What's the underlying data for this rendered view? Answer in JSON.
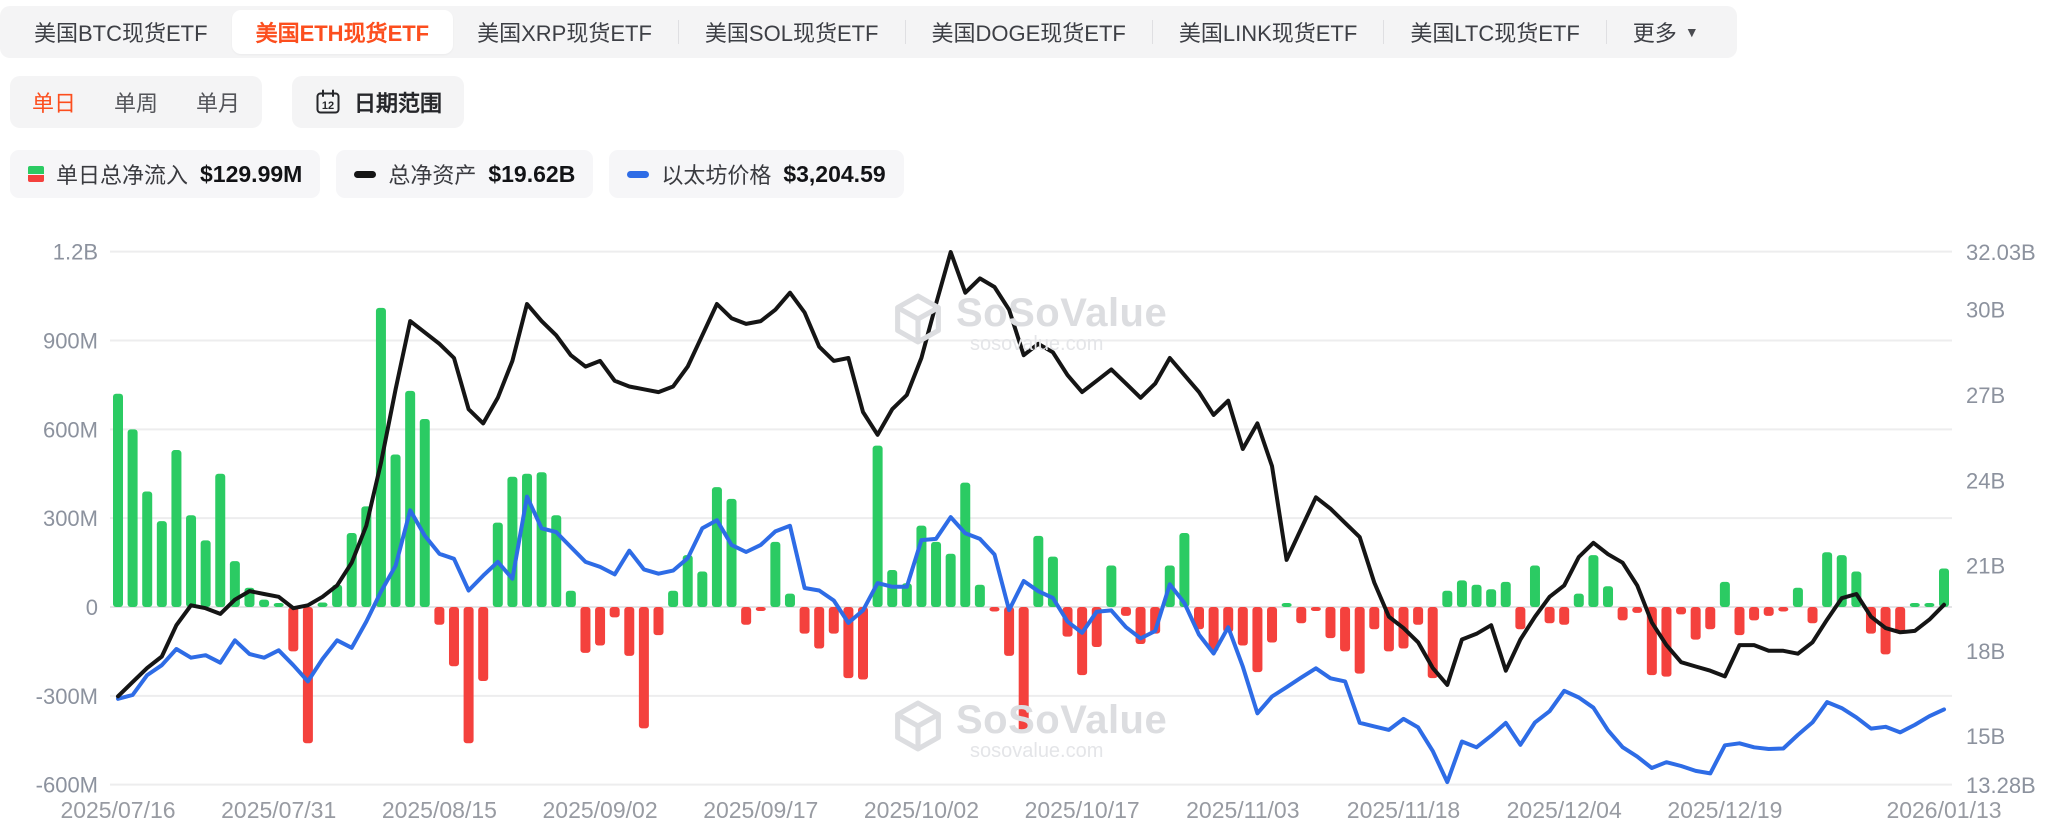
{
  "tabs": {
    "items": [
      {
        "label": "美国BTC现货ETF",
        "active": false
      },
      {
        "label": "美国ETH现货ETF",
        "active": true
      },
      {
        "label": "美国XRP现货ETF",
        "active": false
      },
      {
        "label": "美国SOL现货ETF",
        "active": false
      },
      {
        "label": "美国DOGE现货ETF",
        "active": false
      },
      {
        "label": "美国LINK现货ETF",
        "active": false
      },
      {
        "label": "美国LTC现货ETF",
        "active": false
      }
    ],
    "more_label": "更多"
  },
  "period_toggle": {
    "options": [
      "单日",
      "单周",
      "单月"
    ],
    "selected": "单日"
  },
  "date_range": {
    "label": "日期范围",
    "calendar_day": "12"
  },
  "legend": [
    {
      "marker": "green-red-square",
      "label": "单日总净流入",
      "value": "$129.99M"
    },
    {
      "marker": "black-dash",
      "label": "总净资产",
      "value": "$19.62B"
    },
    {
      "marker": "blue-dash",
      "label": "以太坊价格",
      "value": "$3,204.59"
    }
  ],
  "watermark": {
    "brand": "SoSoValue",
    "domain": "sosovalue.com"
  },
  "colors": {
    "accent": "#fc4e1e",
    "bar_positive": "#2bcb63",
    "bar_negative": "#f4413d",
    "assets_line": "#151515",
    "price_line": "#2e6ce6",
    "grid": "#ededee",
    "axis_text": "#8c929e",
    "date_text": "#989ba2"
  },
  "chart_data": {
    "type": "bar",
    "title": "美国ETH现货ETF 单日总净流入 / 总净资产 / 以太坊价格",
    "left_axis": {
      "unit": "M USD",
      "min": -600,
      "max": 1200,
      "tick_values": [
        1200,
        900,
        600,
        300,
        0,
        -300,
        -600
      ],
      "tick_labels": [
        "1.2B",
        "900M",
        "600M",
        "300M",
        "0",
        "-300M",
        "-600M"
      ]
    },
    "right_axis": {
      "unit": "B USD",
      "min": 13.28,
      "max": 32.03,
      "tick_values": [
        32.03,
        30,
        27,
        24,
        21,
        18,
        15,
        13.28
      ],
      "tick_labels": [
        "32.03B",
        "30B",
        "27B",
        "24B",
        "21B",
        "18B",
        "15B",
        "13.28B"
      ]
    },
    "price_axis_hidden": {
      "unit": "USD",
      "min": 2597,
      "max": 6881
    },
    "x_tick_indices": [
      0,
      11,
      22,
      33,
      44,
      55,
      66,
      77,
      88,
      99,
      110,
      125
    ],
    "x_tick_labels": [
      "2025/07/16",
      "2025/07/31",
      "2025/08/15",
      "2025/09/02",
      "2025/09/17",
      "2025/10/02",
      "2025/10/17",
      "2025/11/03",
      "2025/11/18",
      "2025/12/04",
      "2025/12/19",
      "2026/01/13"
    ],
    "grid": true,
    "legend_position": "top-left",
    "dates": [
      "2025/07/16",
      "2025/07/17",
      "2025/07/18",
      "2025/07/21",
      "2025/07/22",
      "2025/07/23",
      "2025/07/24",
      "2025/07/25",
      "2025/07/28",
      "2025/07/29",
      "2025/07/30",
      "2025/07/31",
      "2025/08/01",
      "2025/08/04",
      "2025/08/05",
      "2025/08/06",
      "2025/08/07",
      "2025/08/08",
      "2025/08/11",
      "2025/08/12",
      "2025/08/13",
      "2025/08/14",
      "2025/08/15",
      "2025/08/18",
      "2025/08/19",
      "2025/08/20",
      "2025/08/21",
      "2025/08/22",
      "2025/08/25",
      "2025/08/26",
      "2025/08/27",
      "2025/08/28",
      "2025/08/29",
      "2025/09/02",
      "2025/09/03",
      "2025/09/04",
      "2025/09/05",
      "2025/09/08",
      "2025/09/09",
      "2025/09/10",
      "2025/09/11",
      "2025/09/12",
      "2025/09/15",
      "2025/09/16",
      "2025/09/17",
      "2025/09/18",
      "2025/09/19",
      "2025/09/22",
      "2025/09/23",
      "2025/09/24",
      "2025/09/25",
      "2025/09/26",
      "2025/09/29",
      "2025/09/30",
      "2025/10/01",
      "2025/10/02",
      "2025/10/03",
      "2025/10/06",
      "2025/10/07",
      "2025/10/08",
      "2025/10/09",
      "2025/10/10",
      "2025/10/13",
      "2025/10/14",
      "2025/10/15",
      "2025/10/16",
      "2025/10/17",
      "2025/10/20",
      "2025/10/21",
      "2025/10/22",
      "2025/10/23",
      "2025/10/24",
      "2025/10/27",
      "2025/10/28",
      "2025/10/29",
      "2025/10/30",
      "2025/10/31",
      "2025/11/03",
      "2025/11/04",
      "2025/11/05",
      "2025/11/06",
      "2025/11/07",
      "2025/11/10",
      "2025/11/11",
      "2025/11/12",
      "2025/11/13",
      "2025/11/14",
      "2025/11/17",
      "2025/11/18",
      "2025/11/19",
      "2025/11/20",
      "2025/11/21",
      "2025/11/24",
      "2025/11/25",
      "2025/11/26",
      "2025/11/28",
      "2025/12/01",
      "2025/12/02",
      "2025/12/03",
      "2025/12/04",
      "2025/12/05",
      "2025/12/08",
      "2025/12/09",
      "2025/12/10",
      "2025/12/11",
      "2025/12/12",
      "2025/12/15",
      "2025/12/16",
      "2025/12/17",
      "2025/12/18",
      "2025/12/19",
      "2025/12/22",
      "2025/12/23",
      "2025/12/24",
      "2025/12/26",
      "2025/12/29",
      "2025/12/30",
      "2025/12/31",
      "2026/01/02",
      "2026/01/05",
      "2026/01/06",
      "2026/01/07",
      "2026/01/08",
      "2026/01/09",
      "2026/01/12",
      "2026/01/13"
    ],
    "series": [
      {
        "name": "单日总净流入",
        "type": "bar",
        "unit": "M USD",
        "latest": 129.99,
        "values": [
          720,
          600,
          390,
          290,
          530,
          310,
          225,
          450,
          155,
          65,
          25,
          10,
          -150,
          -460,
          15,
          75,
          250,
          340,
          1010,
          515,
          730,
          635,
          -60,
          -200,
          -460,
          -250,
          285,
          440,
          450,
          455,
          310,
          55,
          -155,
          -130,
          -35,
          -165,
          -410,
          -95,
          55,
          175,
          120,
          405,
          365,
          -60,
          -5,
          220,
          45,
          -90,
          -140,
          -90,
          -240,
          -245,
          545,
          125,
          80,
          275,
          220,
          180,
          420,
          75,
          -15,
          -165,
          -420,
          240,
          170,
          -100,
          -230,
          -135,
          140,
          -30,
          -125,
          -90,
          140,
          250,
          -75,
          -150,
          -85,
          -130,
          -220,
          -120,
          10,
          -55,
          -5,
          -105,
          -150,
          -225,
          -75,
          -150,
          -140,
          -60,
          -240,
          55,
          90,
          75,
          60,
          85,
          -75,
          140,
          -55,
          -60,
          45,
          175,
          70,
          -45,
          -20,
          -230,
          -235,
          -25,
          -110,
          -75,
          85,
          -95,
          -45,
          -30,
          -15,
          65,
          -55,
          185,
          175,
          120,
          -90,
          -160,
          -90,
          5,
          10,
          129.99
        ]
      },
      {
        "name": "总净资产",
        "type": "line",
        "unit": "B USD",
        "latest": 19.62,
        "values": [
          16.4,
          16.9,
          17.4,
          17.8,
          18.9,
          19.6,
          19.5,
          19.3,
          19.8,
          20.1,
          20.0,
          19.9,
          19.5,
          19.6,
          19.9,
          20.3,
          21.1,
          22.4,
          24.6,
          27.2,
          29.6,
          29.2,
          28.8,
          28.3,
          26.5,
          26.0,
          26.9,
          28.2,
          30.2,
          29.6,
          29.1,
          28.4,
          28.0,
          28.2,
          27.5,
          27.3,
          27.2,
          27.1,
          27.3,
          28.0,
          29.1,
          30.2,
          29.7,
          29.5,
          29.6,
          30.0,
          30.6,
          29.9,
          28.7,
          28.2,
          28.3,
          26.4,
          25.6,
          26.5,
          27.0,
          28.3,
          30.2,
          32.03,
          30.6,
          31.1,
          30.8,
          30.0,
          28.4,
          28.8,
          28.5,
          27.7,
          27.1,
          27.5,
          27.9,
          27.4,
          26.9,
          27.4,
          28.3,
          27.7,
          27.1,
          26.3,
          26.8,
          25.1,
          26.0,
          24.5,
          21.2,
          22.3,
          23.4,
          23.0,
          22.5,
          22.0,
          20.4,
          19.2,
          18.8,
          18.3,
          17.4,
          16.8,
          18.4,
          18.6,
          18.9,
          17.3,
          18.4,
          19.2,
          19.9,
          20.3,
          21.3,
          21.8,
          21.4,
          21.1,
          20.3,
          19.0,
          18.2,
          17.6,
          17.45,
          17.3,
          17.1,
          18.2,
          18.2,
          18.0,
          18.0,
          17.9,
          18.3,
          19.1,
          19.85,
          20.0,
          19.2,
          18.8,
          18.65,
          18.7,
          19.1,
          19.62
        ]
      },
      {
        "name": "以太坊价格",
        "type": "line",
        "unit": "USD",
        "latest": 3204.59,
        "values": [
          3290,
          3320,
          3480,
          3560,
          3690,
          3620,
          3640,
          3580,
          3760,
          3650,
          3620,
          3680,
          3560,
          3430,
          3610,
          3760,
          3700,
          3910,
          4150,
          4360,
          4805,
          4600,
          4455,
          4415,
          4160,
          4280,
          4390,
          4255,
          4915,
          4660,
          4630,
          4510,
          4390,
          4350,
          4290,
          4480,
          4330,
          4295,
          4320,
          4420,
          4660,
          4725,
          4527,
          4470,
          4527,
          4635,
          4680,
          4180,
          4160,
          4080,
          3900,
          4000,
          4220,
          4190,
          4190,
          4565,
          4575,
          4750,
          4620,
          4575,
          4450,
          4003,
          4237,
          4155,
          4100,
          3910,
          3820,
          3990,
          4000,
          3865,
          3775,
          3835,
          4210,
          4060,
          3806,
          3654,
          3865,
          3549,
          3173,
          3308,
          3383,
          3460,
          3535,
          3455,
          3430,
          3097,
          3068,
          3040,
          3128,
          3060,
          2871,
          2620,
          2947,
          2900,
          2993,
          3096,
          2920,
          3100,
          3190,
          3354,
          3300,
          3218,
          3037,
          2901,
          2825,
          2734,
          2780,
          2750,
          2710,
          2690,
          2916,
          2932,
          2900,
          2886,
          2890,
          3000,
          3100,
          3263,
          3215,
          3140,
          3050,
          3065,
          3020,
          3080,
          3150,
          3204.59
        ]
      }
    ]
  }
}
